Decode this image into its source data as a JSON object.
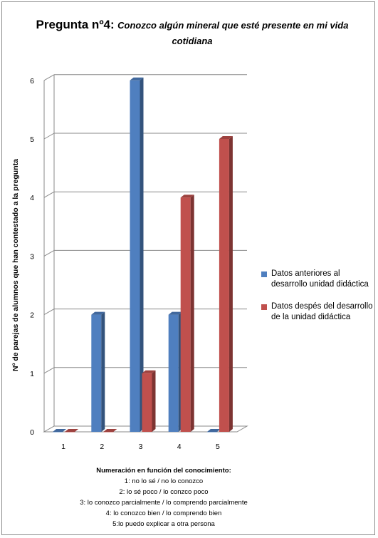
{
  "chart_data": {
    "type": "bar",
    "title": "Pregunta nº4:",
    "subtitle": "Conozco algún mineral que esté presente en mi vida cotidiana",
    "categories": [
      "1",
      "2",
      "3",
      "4",
      "5"
    ],
    "series": [
      {
        "name": "Datos anteriores al desarrollo unidad didáctica",
        "color": "#4f7fbf",
        "values": [
          0,
          2,
          6,
          2,
          0
        ]
      },
      {
        "name": "Datos despés del desarrollo de la unidad didáctica",
        "color": "#c0504d",
        "values": [
          0,
          0,
          1,
          4,
          5
        ]
      }
    ],
    "ylabel": "Nº de parejas de alumnos que han contestado a la pregunta",
    "xlabel": "Numeración en función del conocimiento:",
    "x_notes": [
      "1: no lo sé / no lo conozco",
      "2: lo sé poco / lo conzco poco",
      "3: lo conozco parcialmente / lo comprendo parcialmente",
      "4: lo conozco bien / lo comprendo bien",
      "5:lo puedo explicar a otra persona"
    ],
    "ylim": [
      0,
      6
    ],
    "yticks": [
      "0",
      "1",
      "2",
      "3",
      "4",
      "5",
      "6"
    ],
    "grid": true,
    "legend_position": "right",
    "style": "3d-column"
  }
}
